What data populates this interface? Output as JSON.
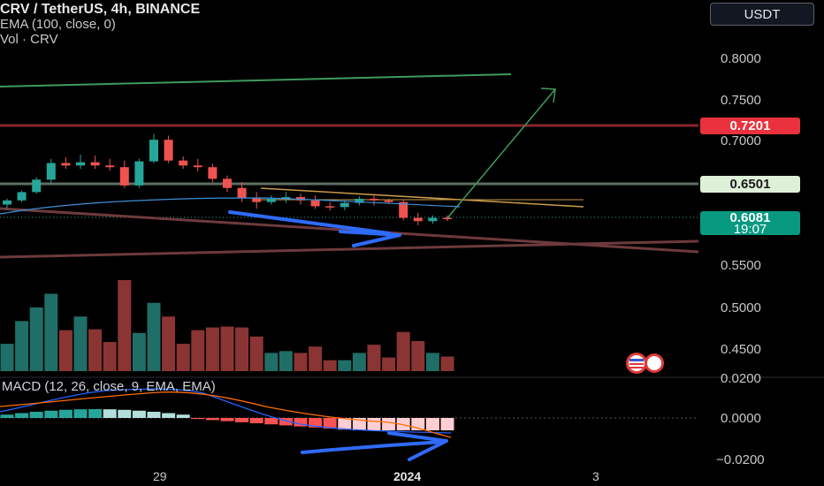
{
  "legend": {
    "title": "CRV / TetherUS, 4h, BINANCE",
    "ema": "EMA (100, close, 0)",
    "vol": "Vol · CRV"
  },
  "currency_button": "USDT",
  "price_axis": {
    "labels": [
      "0.8000",
      "0.7500",
      "0.7000",
      "0.5500",
      "0.5000",
      "0.4500"
    ]
  },
  "price_tags": {
    "resistance": "0.7201",
    "support": "0.6501",
    "last_price": "0.6081",
    "countdown": "19:07"
  },
  "macd": {
    "legend": "MACD (12, 26, close, 9, EMA, EMA)",
    "axis_labels": [
      "0.0200",
      "0.0000",
      "−0.0200"
    ]
  },
  "time_axis": {
    "labels": [
      "29",
      "2024",
      "3"
    ]
  },
  "colors": {
    "up": "#26a69a",
    "down": "#ef5350",
    "resistance_line": "#b22833",
    "support_line": "#6f8f72",
    "arrow": "#2f6bff",
    "target_line": "#3e9b5c",
    "ema": "#3b8fd8"
  },
  "chart_data": {
    "type": "candlestick",
    "symbol": "CRV / TetherUS",
    "interval": "4h",
    "exchange": "BINANCE",
    "candles": [
      {
        "o": 0.625,
        "h": 0.632,
        "l": 0.62,
        "c": 0.63,
        "v": 0.3
      },
      {
        "o": 0.63,
        "h": 0.642,
        "l": 0.628,
        "c": 0.64,
        "v": 0.55
      },
      {
        "o": 0.64,
        "h": 0.658,
        "l": 0.638,
        "c": 0.655,
        "v": 0.7
      },
      {
        "o": 0.655,
        "h": 0.68,
        "l": 0.65,
        "c": 0.675,
        "v": 0.85
      },
      {
        "o": 0.675,
        "h": 0.682,
        "l": 0.668,
        "c": 0.672,
        "v": 0.45
      },
      {
        "o": 0.672,
        "h": 0.685,
        "l": 0.668,
        "c": 0.676,
        "v": 0.6
      },
      {
        "o": 0.676,
        "h": 0.684,
        "l": 0.668,
        "c": 0.672,
        "v": 0.46
      },
      {
        "o": 0.672,
        "h": 0.68,
        "l": 0.666,
        "c": 0.67,
        "v": 0.32
      },
      {
        "o": 0.67,
        "h": 0.678,
        "l": 0.645,
        "c": 0.648,
        "v": 1.0
      },
      {
        "o": 0.648,
        "h": 0.68,
        "l": 0.645,
        "c": 0.677,
        "v": 0.42
      },
      {
        "o": 0.677,
        "h": 0.71,
        "l": 0.675,
        "c": 0.703,
        "v": 0.75
      },
      {
        "o": 0.703,
        "h": 0.708,
        "l": 0.675,
        "c": 0.678,
        "v": 0.6
      },
      {
        "o": 0.678,
        "h": 0.683,
        "l": 0.668,
        "c": 0.672,
        "v": 0.3
      },
      {
        "o": 0.672,
        "h": 0.68,
        "l": 0.665,
        "c": 0.67,
        "v": 0.45
      },
      {
        "o": 0.67,
        "h": 0.674,
        "l": 0.652,
        "c": 0.656,
        "v": 0.48
      },
      {
        "o": 0.656,
        "h": 0.66,
        "l": 0.64,
        "c": 0.645,
        "v": 0.49
      },
      {
        "o": 0.645,
        "h": 0.652,
        "l": 0.628,
        "c": 0.633,
        "v": 0.48
      },
      {
        "o": 0.633,
        "h": 0.64,
        "l": 0.62,
        "c": 0.628,
        "v": 0.38
      },
      {
        "o": 0.628,
        "h": 0.636,
        "l": 0.625,
        "c": 0.632,
        "v": 0.2
      },
      {
        "o": 0.632,
        "h": 0.64,
        "l": 0.627,
        "c": 0.634,
        "v": 0.22
      },
      {
        "o": 0.634,
        "h": 0.638,
        "l": 0.625,
        "c": 0.63,
        "v": 0.2
      },
      {
        "o": 0.63,
        "h": 0.636,
        "l": 0.62,
        "c": 0.623,
        "v": 0.27
      },
      {
        "o": 0.623,
        "h": 0.628,
        "l": 0.618,
        "c": 0.622,
        "v": 0.12
      },
      {
        "o": 0.622,
        "h": 0.63,
        "l": 0.618,
        "c": 0.627,
        "v": 0.12
      },
      {
        "o": 0.627,
        "h": 0.635,
        "l": 0.624,
        "c": 0.632,
        "v": 0.2
      },
      {
        "o": 0.632,
        "h": 0.636,
        "l": 0.624,
        "c": 0.63,
        "v": 0.29
      },
      {
        "o": 0.63,
        "h": 0.632,
        "l": 0.626,
        "c": 0.628,
        "v": 0.15
      },
      {
        "o": 0.628,
        "h": 0.631,
        "l": 0.606,
        "c": 0.609,
        "v": 0.43
      },
      {
        "o": 0.609,
        "h": 0.615,
        "l": 0.6,
        "c": 0.605,
        "v": 0.33
      },
      {
        "o": 0.605,
        "h": 0.612,
        "l": 0.602,
        "c": 0.609,
        "v": 0.2
      },
      {
        "o": 0.609,
        "h": 0.612,
        "l": 0.605,
        "c": 0.608,
        "v": 0.16
      }
    ]
  }
}
